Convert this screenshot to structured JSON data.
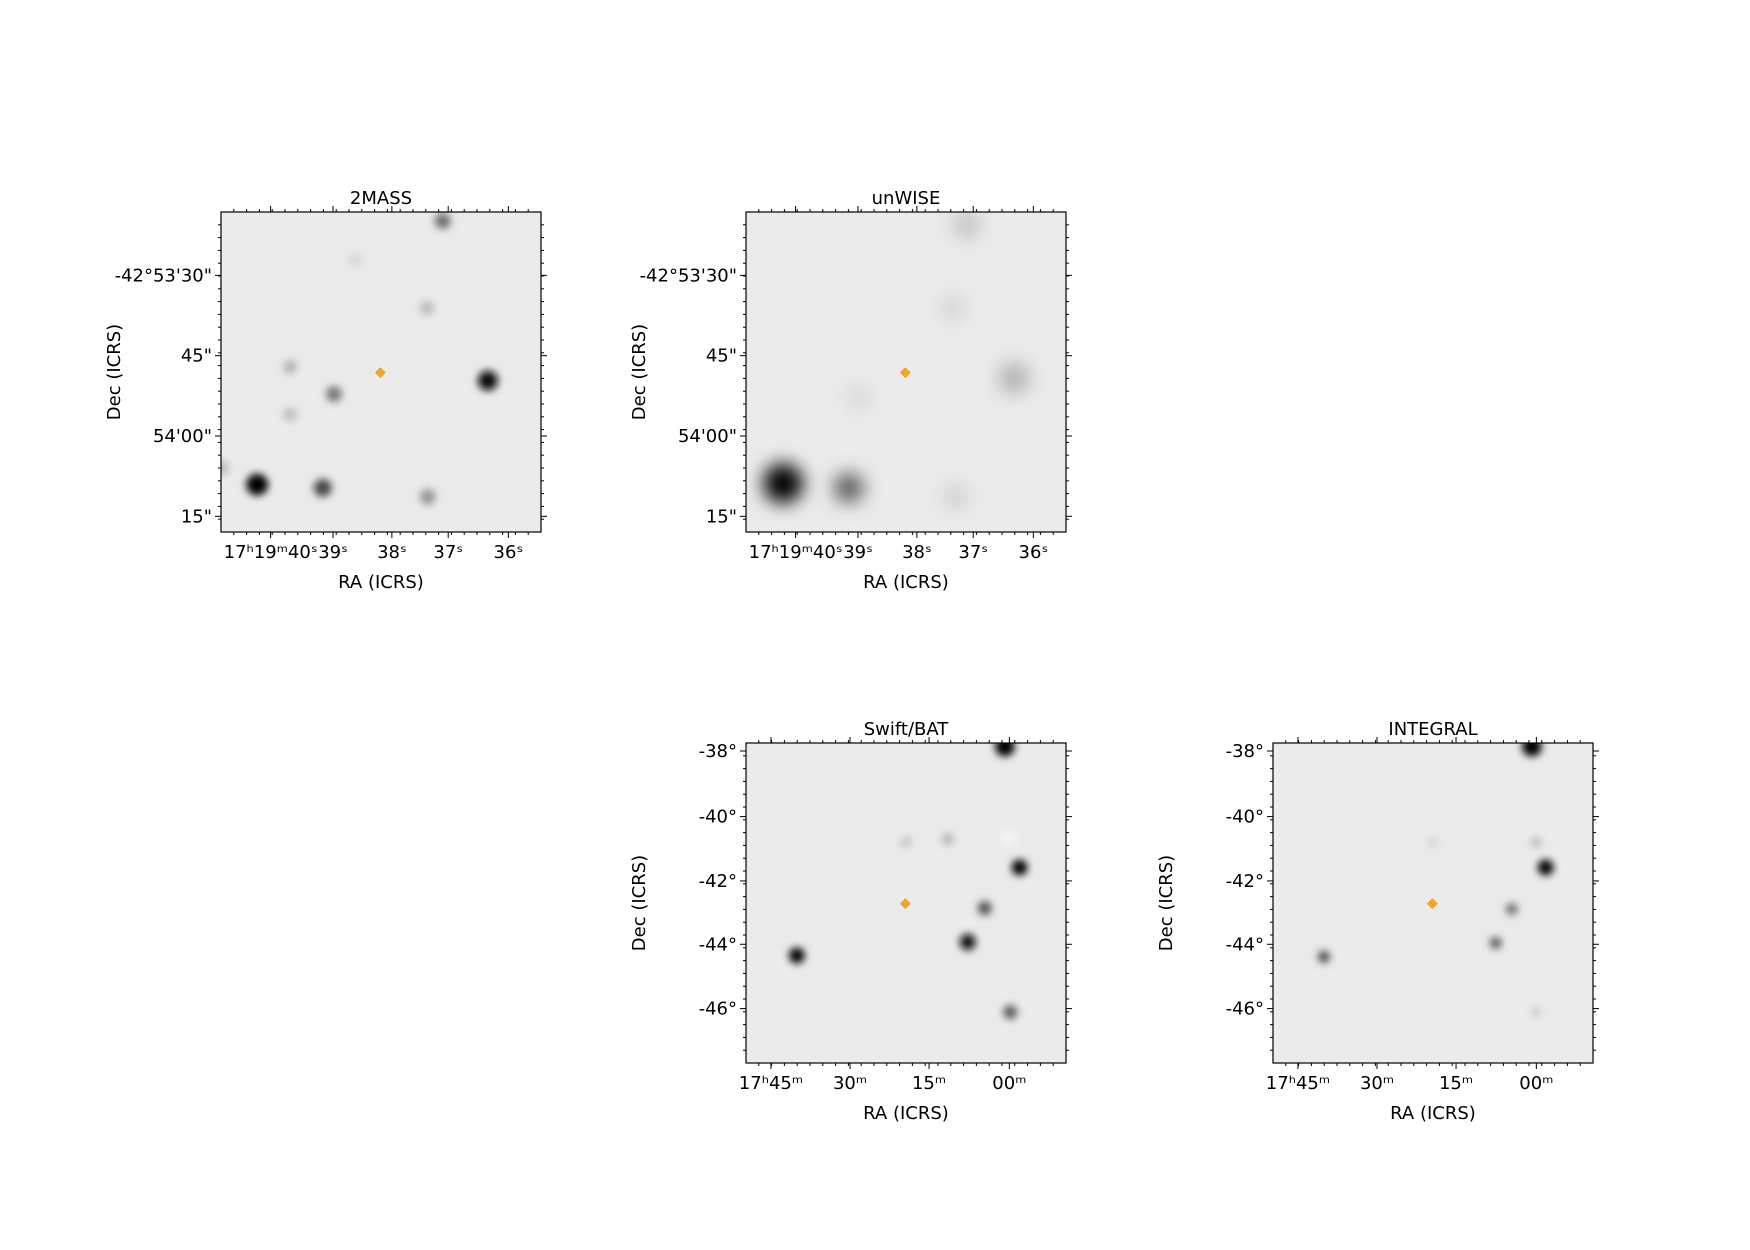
{
  "panels": [
    {
      "title": "2MASS",
      "xlabel": "RA (ICRS)",
      "ylabel": "Dec (ICRS)",
      "xticks": [
        "17ʰ19ᵐ40ˢ",
        "39ˢ",
        "38ˢ",
        "37ˢ",
        "36ˢ"
      ],
      "yticks": [
        "-42°53'30\"",
        "45\"",
        "54'00\"",
        "15\""
      ]
    },
    {
      "title": "unWISE",
      "xlabel": "RA (ICRS)",
      "ylabel": "Dec (ICRS)",
      "xticks": [
        "17ʰ19ᵐ40ˢ",
        "39ˢ",
        "38ˢ",
        "37ˢ",
        "36ˢ"
      ],
      "yticks": [
        "-42°53'30\"",
        "45\"",
        "54'00\"",
        "15\""
      ]
    },
    {
      "title": "Swift/BAT",
      "xlabel": "RA (ICRS)",
      "ylabel": "Dec (ICRS)",
      "xticks": [
        "17ʰ45ᵐ",
        "30ᵐ",
        "15ᵐ",
        "00ᵐ"
      ],
      "yticks": [
        "-38°",
        "-40°",
        "-42°",
        "-44°",
        "-46°"
      ]
    },
    {
      "title": "INTEGRAL",
      "xlabel": "RA (ICRS)",
      "ylabel": "Dec (ICRS)",
      "xticks": [
        "17ʰ45ᵐ",
        "30ᵐ",
        "15ᵐ",
        "00ᵐ"
      ],
      "yticks": [
        "-38°",
        "-40°",
        "-42°",
        "-44°",
        "-46°"
      ]
    }
  ]
}
